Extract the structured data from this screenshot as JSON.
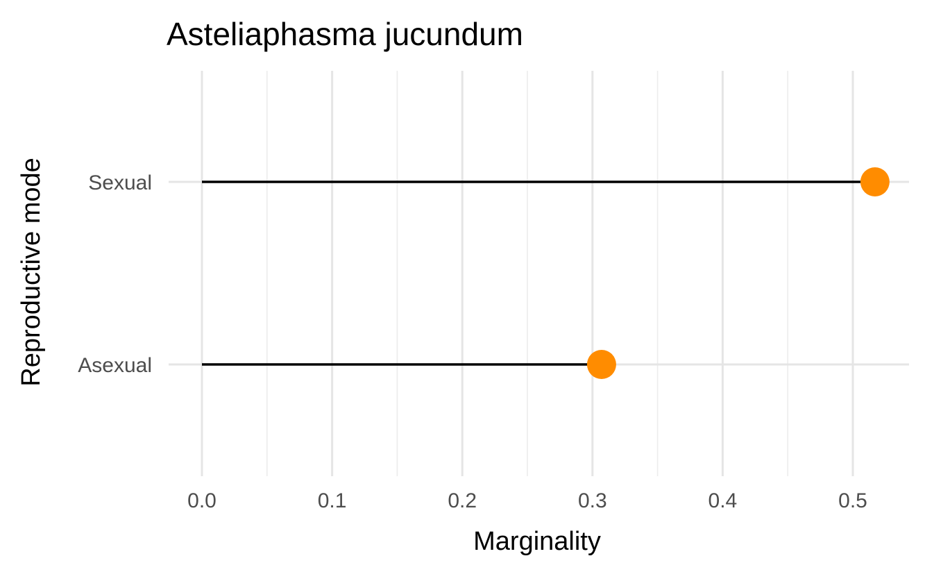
{
  "chart_data": {
    "type": "lollipop",
    "title": "Asteliaphasma jucundum",
    "xlabel": "Marginality",
    "ylabel": "Reproductive mode",
    "categories": [
      "Asexual",
      "Sexual"
    ],
    "values": [
      0.307,
      0.517
    ],
    "xlim": [
      0,
      0.545
    ],
    "x_ticks": [
      0,
      0.1,
      0.2,
      0.3,
      0.4,
      0.5
    ],
    "x_tick_labels": [
      "0.0",
      "0.1",
      "0.2",
      "0.3",
      "0.4",
      "0.5"
    ],
    "grid": true,
    "legend": "none",
    "point_color": "#FF8C00",
    "segment_color": "#000000"
  }
}
